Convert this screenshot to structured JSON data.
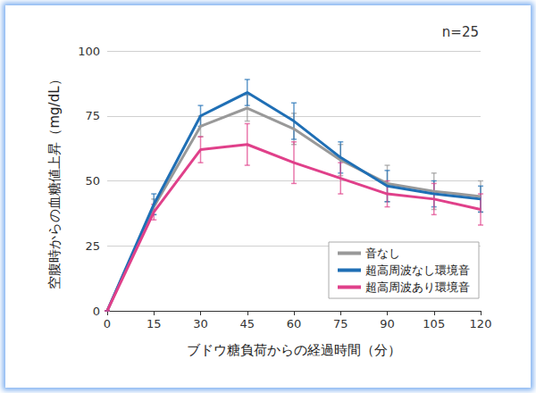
{
  "chart_data": {
    "type": "line",
    "annotation": "n=25",
    "x_label": "ブドウ糖負荷からの経過時間（分）",
    "y_label": "空腹時からの血糖値上昇（mg/dL）",
    "categories": [
      "0",
      "15",
      "30",
      "45",
      "60",
      "75",
      "90",
      "105",
      "120"
    ],
    "ylim": [
      0,
      100
    ],
    "yticks": [
      0,
      25,
      50,
      75,
      100
    ],
    "grid": true,
    "legend": "lower right",
    "series": [
      {
        "name": "音なし",
        "color": "#999999",
        "values": [
          0,
          40,
          71,
          78,
          70,
          58,
          49,
          46,
          44
        ],
        "errors": [
          0,
          3,
          4,
          5,
          6,
          6,
          7,
          7,
          6
        ]
      },
      {
        "name": "超高周波なし環境音",
        "color": "#1f6fb5",
        "values": [
          0,
          41,
          75,
          84,
          73,
          59,
          48,
          45,
          43
        ],
        "errors": [
          0,
          4,
          4,
          5,
          7,
          6,
          6,
          5,
          5
        ]
      },
      {
        "name": "超高周波あり環境音",
        "color": "#e0408a",
        "values": [
          0,
          38,
          62,
          64,
          57,
          51,
          45,
          43,
          39
        ],
        "errors": [
          0,
          3,
          5,
          8,
          8,
          6,
          5,
          6,
          6
        ]
      }
    ]
  }
}
